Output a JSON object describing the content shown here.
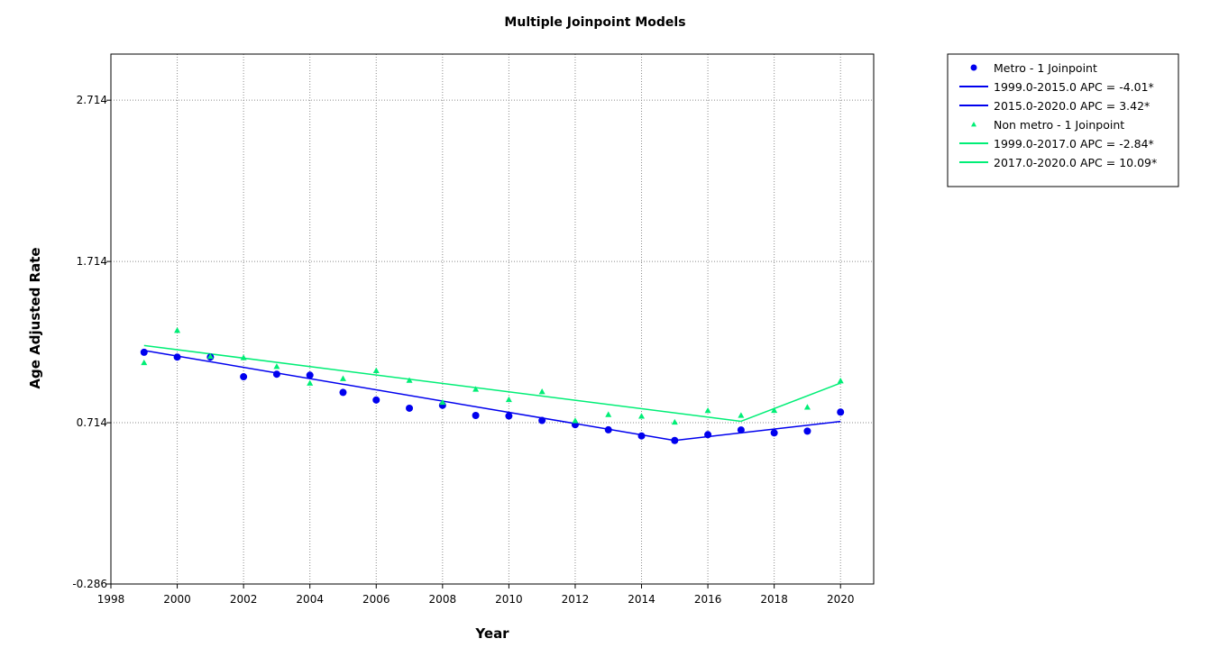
{
  "chart_data": {
    "type": "scatter",
    "title": "Multiple Joinpoint Models",
    "xlabel": "Year",
    "ylabel": "Age Adjusted Rate",
    "xlim": [
      1998,
      2021
    ],
    "ylim": [
      -0.286,
      3.0
    ],
    "x_ticks": [
      "1998",
      "2000",
      "2002",
      "2004",
      "2006",
      "2008",
      "2010",
      "2012",
      "2014",
      "2016",
      "2018",
      "2020"
    ],
    "y_ticks": [
      "-0.286",
      "0.714",
      "1.714",
      "2.714"
    ],
    "grid": true,
    "legend_position": "outside-right",
    "series": [
      {
        "name": "Metro - 1 Joinpoint",
        "marker": "circle",
        "color": "#0000ee",
        "x": [
          1999,
          2000,
          2001,
          2002,
          2003,
          2004,
          2005,
          2006,
          2007,
          2008,
          2009,
          2010,
          2011,
          2012,
          2013,
          2014,
          2015,
          2016,
          2017,
          2018,
          2019,
          2020
        ],
        "y": [
          1.151,
          1.121,
          1.121,
          0.999,
          1.015,
          1.009,
          0.902,
          0.855,
          0.804,
          0.822,
          0.759,
          0.756,
          0.728,
          0.702,
          0.67,
          0.632,
          0.604,
          0.64,
          0.669,
          0.651,
          0.662,
          0.78
        ],
        "fits": [
          {
            "name": "1999.0-2015.0 APC  =  -4.01*",
            "x": [
              1999,
              2015
            ],
            "y": [
              1.162,
              0.604
            ]
          },
          {
            "name": "2015.0-2020.0 APC  =  3.42*",
            "x": [
              2015,
              2020
            ],
            "y": [
              0.604,
              0.722
            ]
          }
        ]
      },
      {
        "name": "Non metro - 1 Joinpoint",
        "marker": "triangle",
        "color": "#00ee76",
        "x": [
          1999,
          2000,
          2001,
          2002,
          2003,
          2004,
          2005,
          2006,
          2007,
          2008,
          2009,
          2010,
          2011,
          2012,
          2013,
          2014,
          2015,
          2016,
          2017,
          2018,
          2019,
          2020
        ],
        "y": [
          1.087,
          1.287,
          1.126,
          1.118,
          1.063,
          0.96,
          0.988,
          1.037,
          0.977,
          0.841,
          0.922,
          0.858,
          0.907,
          0.727,
          0.765,
          0.755,
          0.718,
          0.79,
          0.76,
          0.791,
          0.811,
          0.974
        ],
        "fits": [
          {
            "name": "1999.0-2017.0 APC  =  -2.84*",
            "x": [
              1999,
              2017
            ],
            "y": [
              1.193,
              0.723
            ]
          },
          {
            "name": "2017.0-2020.0 APC  =  10.09*",
            "x": [
              2017,
              2020
            ],
            "y": [
              0.723,
              0.96
            ]
          }
        ]
      }
    ]
  }
}
